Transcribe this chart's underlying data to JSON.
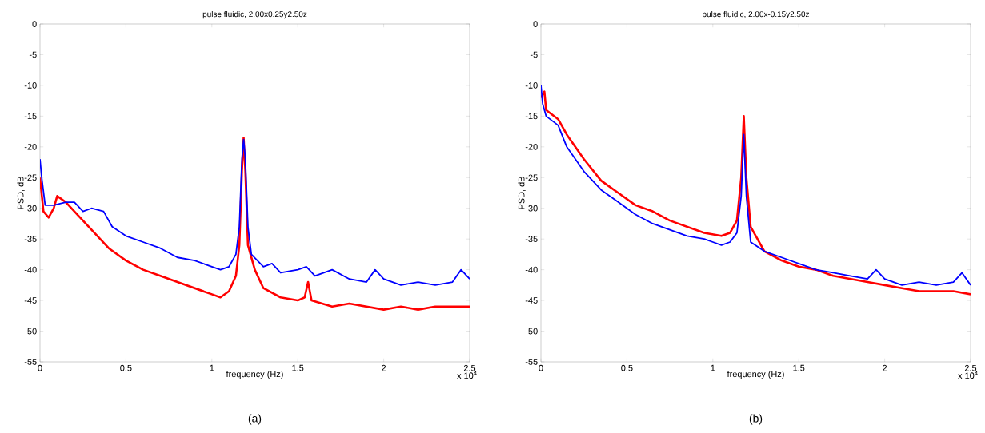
{
  "chart_data": [
    {
      "type": "line",
      "title": "pulse fluidic, 2.00x0.25y2.50z",
      "xlabel": "frequency (Hz)",
      "ylabel": "PSD, dB",
      "xlim": [
        0,
        2.5
      ],
      "ylim": [
        -55,
        0
      ],
      "xticks": [
        0,
        0.5,
        1,
        1.5,
        2,
        2.5
      ],
      "yticks": [
        0,
        -5,
        -10,
        -15,
        -20,
        -25,
        -30,
        -35,
        -40,
        -45,
        -50,
        -55
      ],
      "annotations": [
        "x 10$^{4}$",
        "(a)"
      ],
      "series": [
        {
          "color": "#ff0000",
          "x": [
            0,
            0.02,
            0.05,
            0.08,
            0.1,
            0.15,
            0.2,
            0.3,
            0.4,
            0.5,
            0.6,
            0.7,
            0.8,
            0.9,
            1.0,
            1.05,
            1.1,
            1.14,
            1.16,
            1.175,
            1.185,
            1.195,
            1.21,
            1.25,
            1.3,
            1.4,
            1.5,
            1.54,
            1.56,
            1.58,
            1.7,
            1.8,
            1.9,
            2.0,
            2.1,
            2.2,
            2.3,
            2.4,
            2.5
          ],
          "values": [
            -25,
            -30.5,
            -31.5,
            -30,
            -28,
            -29,
            -30.5,
            -33.5,
            -36.5,
            -38.5,
            -40,
            -41,
            -42,
            -43,
            -44,
            -44.5,
            -43.5,
            -41,
            -36,
            -24,
            -18.5,
            -24,
            -36,
            -40,
            -43,
            -44.5,
            -45,
            -44.5,
            -42,
            -45,
            -46,
            -45.5,
            -46,
            -46.5,
            -46,
            -46.5,
            -46,
            -46,
            -46
          ]
        },
        {
          "color": "#0000ff",
          "x": [
            0,
            0.01,
            0.03,
            0.08,
            0.15,
            0.2,
            0.25,
            0.3,
            0.37,
            0.42,
            0.5,
            0.6,
            0.7,
            0.8,
            0.9,
            1.0,
            1.05,
            1.1,
            1.14,
            1.16,
            1.175,
            1.185,
            1.195,
            1.21,
            1.23,
            1.3,
            1.35,
            1.4,
            1.5,
            1.55,
            1.6,
            1.7,
            1.8,
            1.9,
            1.95,
            2.0,
            2.1,
            2.2,
            2.3,
            2.4,
            2.45,
            2.5
          ],
          "values": [
            -22,
            -25,
            -29.5,
            -29.5,
            -29,
            -29,
            -30.5,
            -30,
            -30.5,
            -33,
            -34.5,
            -35.5,
            -36.5,
            -38,
            -38.5,
            -39.5,
            -40,
            -39.5,
            -37.5,
            -33,
            -22,
            -18.8,
            -22,
            -33,
            -37.5,
            -39.5,
            -39,
            -40.5,
            -40,
            -39.5,
            -41,
            -40,
            -41.5,
            -42,
            -40,
            -41.5,
            -42.5,
            -42,
            -42.5,
            -42,
            -40,
            -41.5
          ]
        }
      ]
    },
    {
      "type": "line",
      "title": "pulse fluidic, 2.00x-0.15y2.50z",
      "xlabel": "frequency (Hz)",
      "ylabel": "PSD, dB",
      "xlim": [
        0,
        2.5
      ],
      "ylim": [
        -55,
        0
      ],
      "xticks": [
        0,
        0.5,
        1,
        1.5,
        2,
        2.5
      ],
      "yticks": [
        0,
        -5,
        -10,
        -15,
        -20,
        -25,
        -30,
        -35,
        -40,
        -45,
        -50,
        -55
      ],
      "annotations": [
        "x 10$^{4}$",
        "(b)"
      ],
      "series": [
        {
          "color": "#ff0000",
          "x": [
            0,
            0.02,
            0.03,
            0.1,
            0.15,
            0.25,
            0.35,
            0.45,
            0.55,
            0.65,
            0.75,
            0.85,
            0.95,
            1.05,
            1.1,
            1.14,
            1.165,
            1.18,
            1.195,
            1.22,
            1.3,
            1.4,
            1.5,
            1.6,
            1.7,
            1.8,
            1.9,
            2.0,
            2.1,
            2.2,
            2.3,
            2.4,
            2.5
          ],
          "values": [
            -12,
            -11,
            -14,
            -15.5,
            -18,
            -22,
            -25.5,
            -27.5,
            -29.5,
            -30.5,
            -32,
            -33,
            -34,
            -34.5,
            -34,
            -32,
            -25,
            -15,
            -25,
            -33,
            -37,
            -38.5,
            -39.5,
            -40,
            -41,
            -41.5,
            -42,
            -42.5,
            -43,
            -43.5,
            -43.5,
            -43.5,
            -44
          ]
        },
        {
          "color": "#0000ff",
          "x": [
            0,
            0.01,
            0.03,
            0.1,
            0.15,
            0.25,
            0.35,
            0.45,
            0.55,
            0.65,
            0.75,
            0.85,
            0.95,
            1.0,
            1.05,
            1.1,
            1.14,
            1.165,
            1.18,
            1.195,
            1.22,
            1.3,
            1.4,
            1.5,
            1.6,
            1.7,
            1.8,
            1.9,
            1.95,
            2.0,
            2.1,
            2.2,
            2.3,
            2.4,
            2.45,
            2.5
          ],
          "values": [
            -10,
            -13,
            -15,
            -16.5,
            -20,
            -24,
            -27,
            -29,
            -31,
            -32.5,
            -33.5,
            -34.5,
            -35,
            -35.5,
            -36,
            -35.5,
            -34,
            -28,
            -18,
            -28,
            -35.5,
            -37,
            -38,
            -39,
            -40,
            -40.5,
            -41,
            -41.5,
            -40,
            -41.5,
            -42.5,
            -42,
            -42.5,
            -42,
            -40.5,
            -42.5
          ]
        }
      ]
    }
  ]
}
